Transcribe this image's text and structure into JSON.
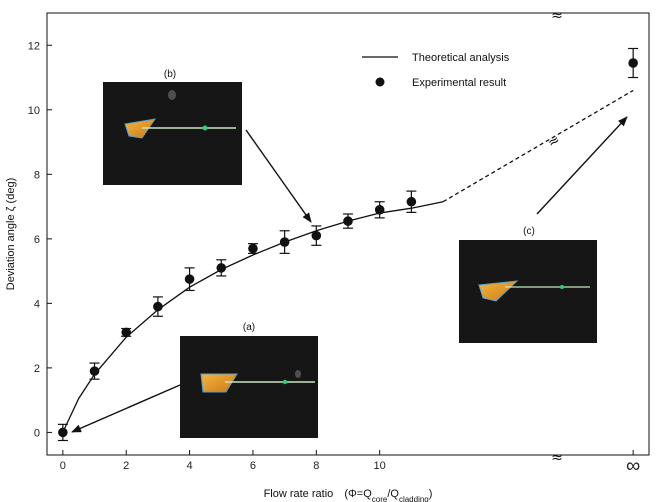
{
  "chart_data": {
    "type": "line",
    "xlabel_main": "Flow rate ratio",
    "xlabel_formula": {
      "prefix": "(Φ=Q",
      "sub1": "core",
      "mid": "/Q",
      "sub2": "cladding",
      "suffix": ")"
    },
    "ylabel": "Deviation angle ζ (deg)",
    "xlim": [
      -0.5,
      18.5
    ],
    "ylim": [
      -0.7,
      13.0
    ],
    "x_ticks": [
      0,
      2,
      4,
      6,
      8,
      10
    ],
    "infinity_label": "∞",
    "axis_break_symbol": "≈",
    "y_ticks": [
      0,
      2,
      4,
      6,
      8,
      10,
      12
    ],
    "legend": {
      "placement": "top-right",
      "entries": [
        {
          "label": "Theoretical analysis",
          "marker": "line"
        },
        {
          "label": "Experimental result",
          "marker": "circle"
        }
      ]
    },
    "series": [
      {
        "name": "Theoretical analysis",
        "kind": "line",
        "x": [
          0,
          0.5,
          1,
          2,
          3,
          4,
          5,
          6,
          7,
          8,
          9,
          10,
          11,
          12
        ],
        "y": [
          0,
          1.05,
          1.8,
          2.95,
          3.8,
          4.5,
          5.05,
          5.5,
          5.9,
          6.25,
          6.55,
          6.8,
          6.95,
          7.15
        ]
      },
      {
        "name": "Theoretical analysis (extrapolated to Φ→∞)",
        "kind": "dashed",
        "x": [
          12,
          18
        ],
        "y": [
          7.15,
          10.6
        ]
      },
      {
        "name": "Experimental result",
        "kind": "points",
        "x": [
          0,
          1,
          2,
          3,
          4,
          5,
          6,
          7,
          8,
          9,
          10,
          11
        ],
        "y": [
          0.0,
          1.9,
          3.1,
          3.9,
          4.75,
          5.1,
          5.7,
          5.9,
          6.1,
          6.55,
          6.9,
          7.15
        ],
        "err": [
          0.25,
          0.25,
          0.12,
          0.3,
          0.35,
          0.25,
          0.15,
          0.35,
          0.3,
          0.22,
          0.25,
          0.33
        ]
      },
      {
        "name": "Experimental result at Φ=∞",
        "kind": "points",
        "x": [
          18
        ],
        "y": [
          11.45
        ],
        "err": [
          0.45
        ]
      }
    ],
    "insets": [
      {
        "label": "(a)",
        "arrow_to": [
          0.2,
          -0.1
        ]
      },
      {
        "label": "(b)",
        "arrow_to": [
          7.8,
          6.4
        ]
      },
      {
        "label": "(c)",
        "arrow_to": [
          17.7,
          10.0
        ]
      }
    ]
  }
}
